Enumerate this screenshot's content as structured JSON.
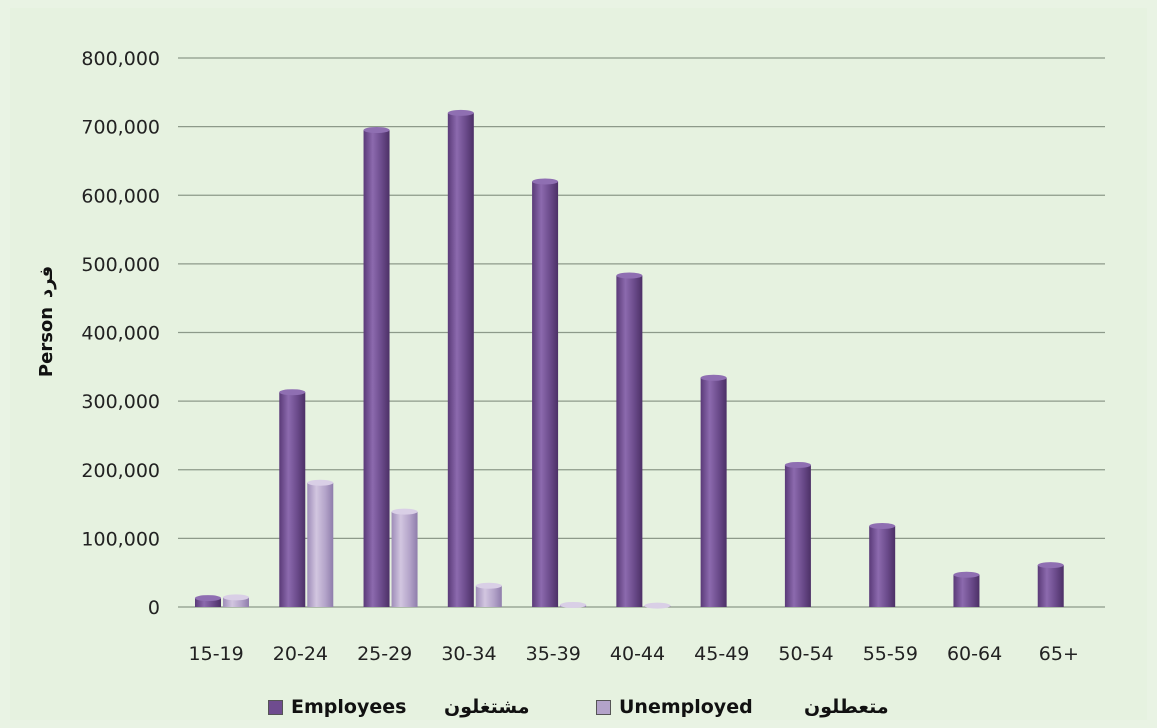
{
  "chart_data": {
    "type": "bar",
    "title": "",
    "xlabel": "",
    "ylabel_en": "Person",
    "ylabel_ar": "فرد",
    "ylim": [
      0,
      800000
    ],
    "yticks": [
      0,
      100000,
      200000,
      300000,
      400000,
      500000,
      600000,
      700000,
      800000
    ],
    "ytick_labels": [
      "0",
      "100,000",
      "200,000",
      "300,000",
      "400,000",
      "500,000",
      "600,000",
      "700,000",
      "800,000"
    ],
    "grid": true,
    "legend_position": "bottom",
    "categories": [
      "15-19",
      "20-24",
      "25-29",
      "30-34",
      "35-39",
      "40-44",
      "45-49",
      "50-54",
      "55-59",
      "60-64",
      "65+"
    ],
    "series": [
      {
        "name": "Employees",
        "name_ar": "مشتغلون",
        "color": "#6f4c8f",
        "values": [
          13000,
          313000,
          695000,
          720000,
          620000,
          483000,
          334000,
          207000,
          118000,
          47000,
          61000
        ]
      },
      {
        "name": "Unemployed",
        "name_ar": "متعطلون",
        "color": "#b3a3c9",
        "values": [
          14000,
          181000,
          139000,
          31000,
          3000,
          2000,
          0,
          0,
          0,
          0,
          0
        ]
      }
    ]
  }
}
